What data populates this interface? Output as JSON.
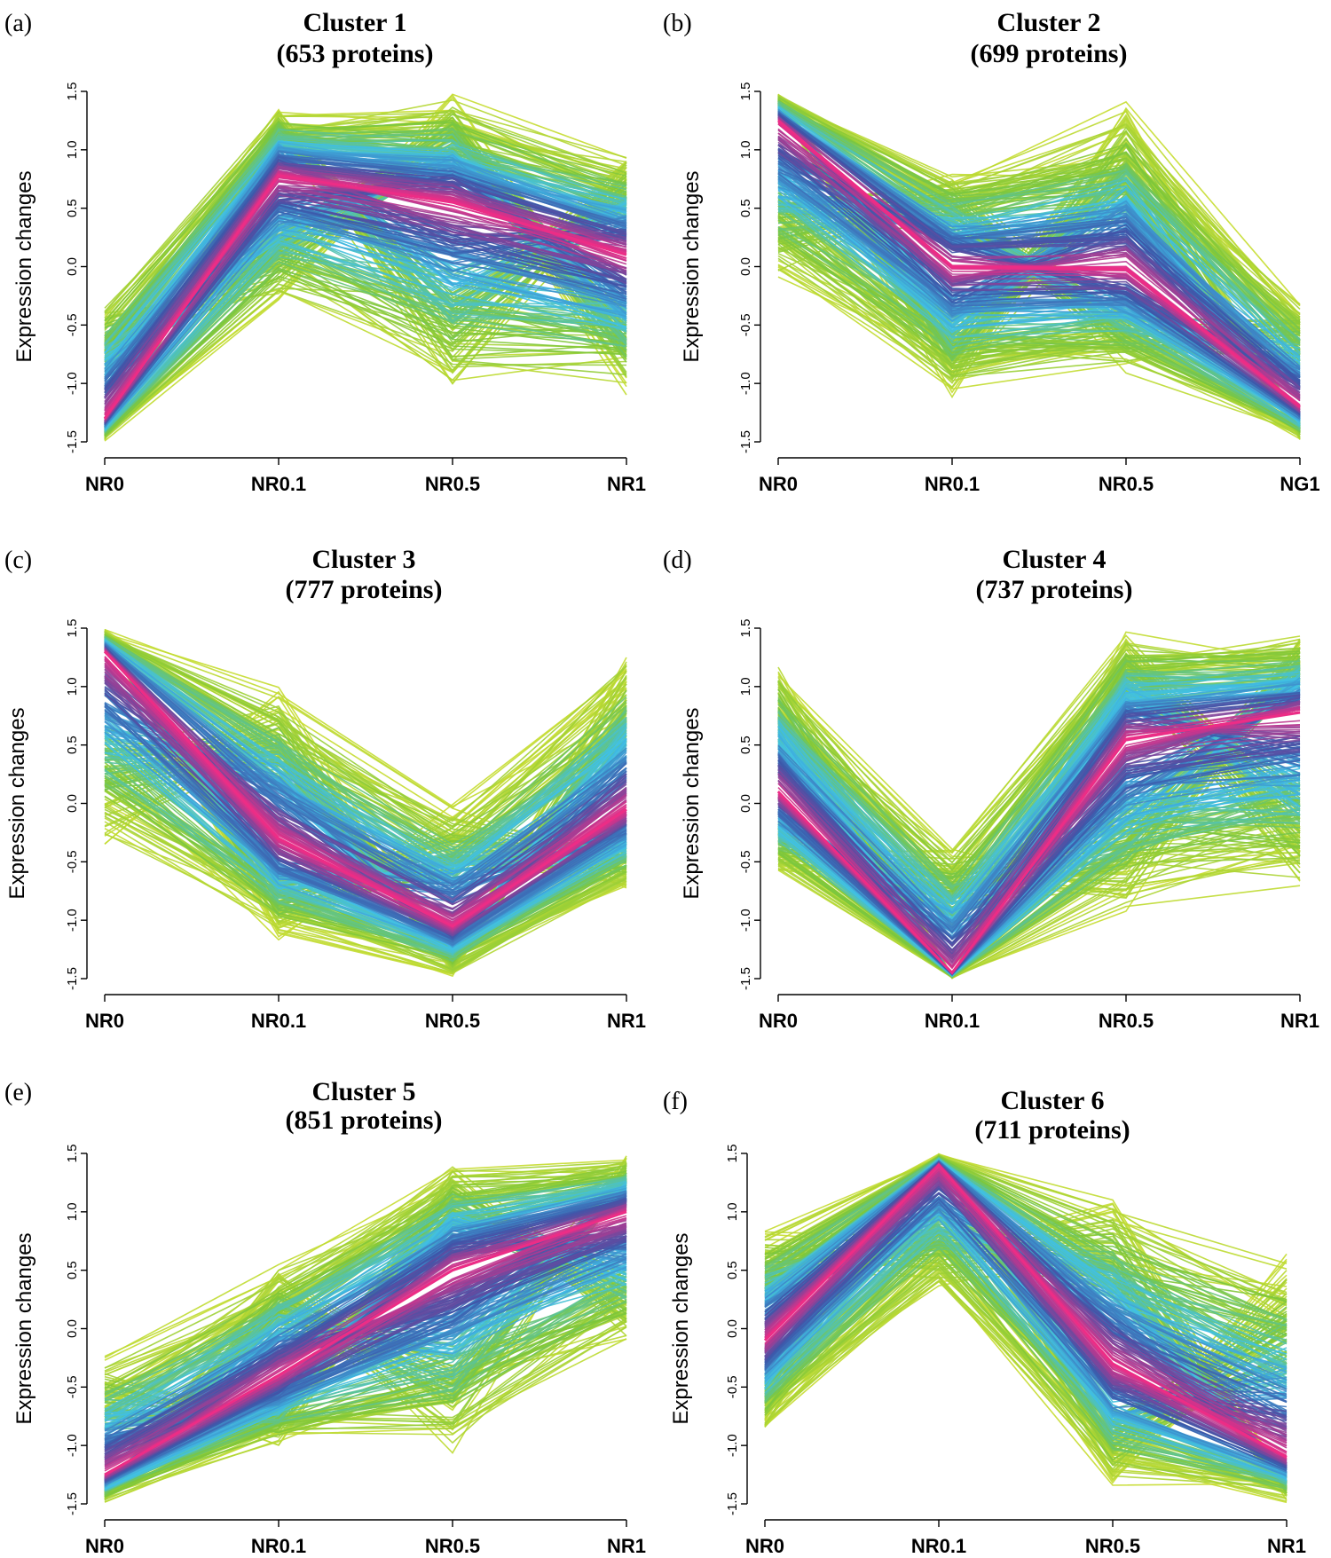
{
  "chart_data": [
    {
      "type": "line",
      "panel": "(a)",
      "title": "Cluster 1",
      "subtitle": "(653 proteins)",
      "xlabel": "",
      "ylabel": "Expression changes",
      "categories": [
        "NR0",
        "NR0.1",
        "NR0.5",
        "NR1"
      ],
      "ylim": [
        -1.5,
        1.5
      ],
      "yticks": [
        "-1.5",
        "-1.0",
        "-0.5",
        "0.0",
        "0.5",
        "1.0",
        "1.5"
      ],
      "centroid": [
        -1.3,
        0.78,
        0.55,
        0.1
      ],
      "envelope": {
        "upper": [
          -0.2,
          1.4,
          1.5,
          1.0
        ],
        "lower": [
          -1.5,
          -0.35,
          -1.12,
          -1.15
        ]
      },
      "colors": [
        "#c8dd30",
        "#7cc63b",
        "#3fc0e8",
        "#3d55a8",
        "#ec2d86"
      ]
    },
    {
      "type": "line",
      "panel": "(b)",
      "title": "Cluster 2",
      "subtitle": "(699 proteins)",
      "xlabel": "",
      "ylabel": "Expression changes",
      "categories": [
        "NR0",
        "NR0.1",
        "NR0.5",
        "NG1"
      ],
      "ylim": [
        -1.5,
        1.5
      ],
      "yticks": [
        "-1.5",
        "-1.0",
        "-0.5",
        "0.0",
        "0.5",
        "1.0",
        "1.5"
      ],
      "centroid": [
        1.25,
        0.0,
        -0.02,
        -1.2
      ],
      "envelope": {
        "upper": [
          1.5,
          0.85,
          1.42,
          -0.25
        ],
        "lower": [
          -0.18,
          -1.15,
          -0.95,
          -1.5
        ]
      },
      "colors": [
        "#c8dd30",
        "#7cc63b",
        "#3fc0e8",
        "#3d55a8",
        "#ec2d86"
      ]
    },
    {
      "type": "line",
      "panel": "(c)",
      "title": "Cluster 3",
      "subtitle": "(777 proteins)",
      "xlabel": "",
      "ylabel": "Expression changes",
      "categories": [
        "NR0",
        "NR0.1",
        "NR0.5",
        "NR1"
      ],
      "ylim": [
        -1.5,
        1.5
      ],
      "yticks": [
        "-1.5",
        "-1.0",
        "-0.5",
        "0.0",
        "0.5",
        "1.0",
        "1.5"
      ],
      "centroid": [
        1.3,
        -0.3,
        -1.05,
        -0.05
      ],
      "envelope": {
        "upper": [
          1.5,
          1.02,
          0.02,
          1.35
        ],
        "lower": [
          -0.38,
          -1.2,
          -1.5,
          -0.75
        ]
      },
      "colors": [
        "#c8dd30",
        "#7cc63b",
        "#3fc0e8",
        "#3d55a8",
        "#ec2d86"
      ]
    },
    {
      "type": "line",
      "panel": "(d)",
      "title": "Cluster 4",
      "subtitle": "(737 proteins)",
      "xlabel": "",
      "ylabel": "Expression changes",
      "categories": [
        "NR0",
        "NR0.1",
        "NR0.5",
        "NR1"
      ],
      "ylim": [
        -1.5,
        1.5
      ],
      "yticks": [
        "-1.5",
        "-1.0",
        "-0.5",
        "0.0",
        "0.5",
        "1.0",
        "1.5"
      ],
      "centroid": [
        0.1,
        -1.45,
        0.55,
        0.78
      ],
      "envelope": {
        "upper": [
          1.25,
          -0.3,
          1.5,
          1.47
        ],
        "lower": [
          -0.62,
          -1.5,
          -1.0,
          -0.82
        ]
      },
      "colors": [
        "#c8dd30",
        "#7cc63b",
        "#3fc0e8",
        "#3d55a8",
        "#ec2d86"
      ]
    },
    {
      "type": "line",
      "panel": "(e)",
      "title": "Cluster 5",
      "subtitle": "(851 proteins)",
      "xlabel": "",
      "ylabel": "Expression changes",
      "categories": [
        "NR0",
        "NR0.1",
        "NR0.5",
        "NR1"
      ],
      "ylim": [
        -1.5,
        1.5
      ],
      "yticks": [
        "-1.5",
        "-1.0",
        "-0.5",
        "0.0",
        "0.5",
        "1.0",
        "1.5"
      ],
      "centroid": [
        -1.25,
        -0.4,
        0.5,
        1.0
      ],
      "envelope": {
        "upper": [
          -0.2,
          0.6,
          1.47,
          1.5
        ],
        "lower": [
          -1.5,
          -1.05,
          -1.12,
          -0.18
        ]
      },
      "colors": [
        "#c8dd30",
        "#7cc63b",
        "#3fc0e8",
        "#3d55a8",
        "#ec2d86"
      ]
    },
    {
      "type": "line",
      "panel": "(f)",
      "title": "Cluster 6",
      "subtitle": "(711 proteins)",
      "xlabel": "",
      "ylabel": "Expression changes",
      "categories": [
        "NR0",
        "NR0.1",
        "NR0.5",
        "NR1"
      ],
      "ylim": [
        -1.5,
        1.5
      ],
      "yticks": [
        "-1.5",
        "-1.0",
        "-0.5",
        "0.0",
        "0.5",
        "1.0",
        "1.5"
      ],
      "centroid": [
        -0.1,
        1.4,
        -0.3,
        -1.1
      ],
      "envelope": {
        "upper": [
          0.87,
          1.5,
          1.17,
          0.68
        ],
        "lower": [
          -0.92,
          0.3,
          -1.38,
          -1.5
        ]
      },
      "colors": [
        "#c8dd30",
        "#7cc63b",
        "#3fc0e8",
        "#3d55a8",
        "#ec2d86"
      ]
    }
  ]
}
